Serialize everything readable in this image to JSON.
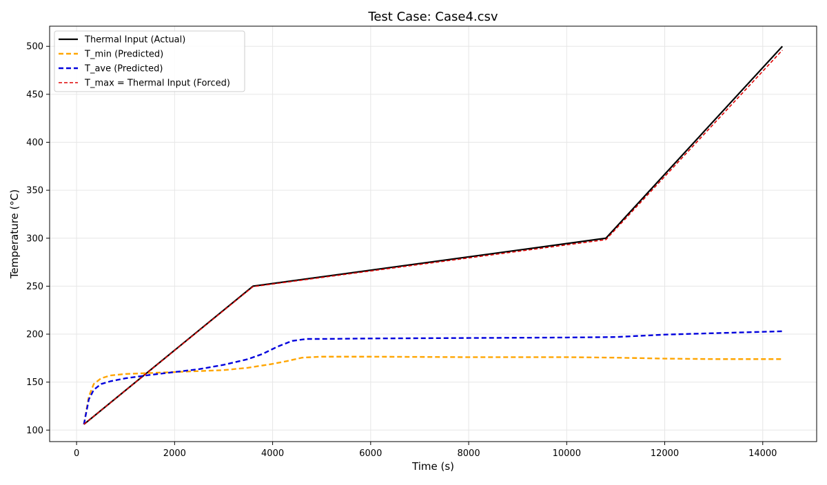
{
  "chart_data": {
    "type": "line",
    "title": "Test Case: Case4.csv",
    "xlabel": "Time (s)",
    "ylabel": "Temperature (°C)",
    "xlim": [
      -550,
      15100
    ],
    "ylim": [
      88,
      521
    ],
    "xticks": [
      0,
      2000,
      4000,
      6000,
      8000,
      10000,
      12000,
      14000
    ],
    "yticks": [
      100,
      150,
      200,
      250,
      300,
      350,
      400,
      450,
      500
    ],
    "grid": true,
    "legend_position": "top-left",
    "series": [
      {
        "name": "Thermal Input (Actual)",
        "color": "#000000",
        "style": "solid",
        "x": [
          150,
          3600,
          10800,
          14400
        ],
        "y": [
          106,
          250,
          300,
          500
        ]
      },
      {
        "name": "T_min (Predicted)",
        "color": "#FFA500",
        "style": "dashed",
        "x": [
          150,
          250,
          350,
          500,
          700,
          1000,
          1500,
          2000,
          2500,
          3000,
          3500,
          4000,
          4300,
          4600,
          5000,
          6000,
          8000,
          10000,
          11000,
          12000,
          13000,
          14400
        ],
        "y": [
          106,
          135,
          148,
          154,
          157,
          158.5,
          159.5,
          160.5,
          161.5,
          162.5,
          165,
          169,
          172,
          175.5,
          176.5,
          176.5,
          176,
          176,
          175.5,
          174.5,
          174,
          174
        ]
      },
      {
        "name": "T_ave (Predicted)",
        "color": "#0000DD",
        "style": "dashed",
        "x": [
          150,
          250,
          350,
          500,
          700,
          1000,
          1500,
          2000,
          2500,
          3000,
          3500,
          3800,
          4100,
          4400,
          4700,
          5000,
          6000,
          8000,
          10000,
          11000,
          12000,
          13000,
          14400
        ],
        "y": [
          106,
          132,
          142,
          148,
          151,
          154,
          157.5,
          160.5,
          163.5,
          168,
          174,
          179.5,
          187,
          193,
          195,
          195,
          195.5,
          196,
          196.5,
          197,
          199.5,
          201,
          203
        ]
      },
      {
        "name": "T_max = Thermal Input (Forced)",
        "color": "#DD0000",
        "style": "dashed",
        "x": [
          150,
          3600,
          10800,
          14400
        ],
        "y": [
          106,
          249.5,
          298.5,
          496
        ]
      }
    ]
  }
}
